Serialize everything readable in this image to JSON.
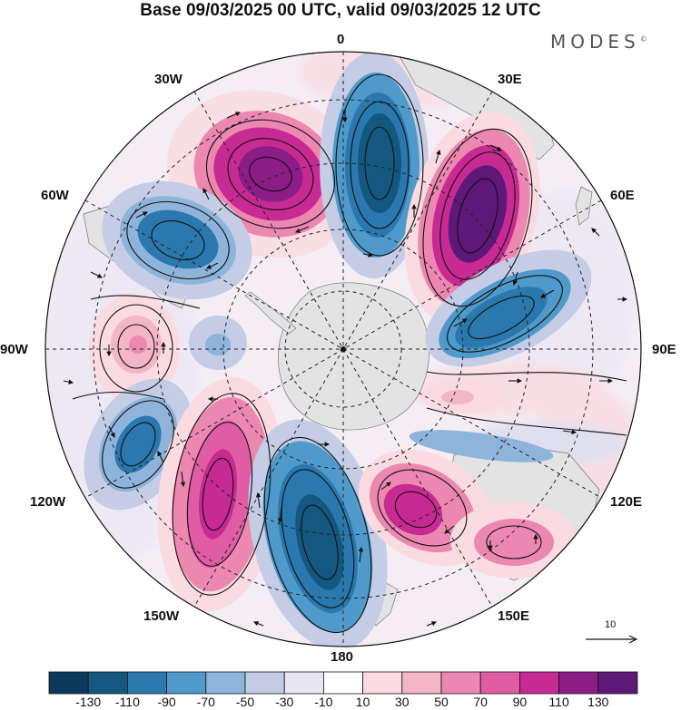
{
  "title": "Base 09/03/2025 00 UTC, valid 09/03/2025 12 UTC",
  "brand": "MODES",
  "brand_mark": "©",
  "longitudes": {
    "lon_0": "0",
    "lon_30e": "30E",
    "lon_60e": "60E",
    "lon_90e": "90E",
    "lon_120e": "120E",
    "lon_150e": "150E",
    "lon_180": "180",
    "lon_150w": "150W",
    "lon_120w": "120W",
    "lon_90w": "90W",
    "lon_60w": "60W",
    "lon_30w": "30W"
  },
  "reference_vector": {
    "label": "10"
  },
  "colorbar": {
    "colors": [
      "#0c3a5c",
      "#14587f",
      "#2a78ad",
      "#4f9acb",
      "#8fb4db",
      "#c4cce6",
      "#e8e6f3",
      "#ffffff",
      "#fadbe2",
      "#f3b5c8",
      "#ec88b0",
      "#e05da6",
      "#c82a93",
      "#8c1c86",
      "#5e1878"
    ],
    "labels": [
      "-130",
      "-110",
      "-90",
      "-70",
      "-50",
      "-30",
      "-10",
      "10",
      "30",
      "50",
      "70",
      "90",
      "110",
      "130"
    ]
  },
  "anomalies": [
    {
      "name": "positive-anomaly-30w",
      "color": "#8c1c86"
    },
    {
      "name": "negative-anomaly-0",
      "color": "#14587f"
    },
    {
      "name": "positive-anomaly-30e",
      "color": "#5e1878"
    },
    {
      "name": "negative-anomaly-60w",
      "color": "#2a78ad"
    },
    {
      "name": "negative-anomaly-80e",
      "color": "#2a78ad"
    },
    {
      "name": "positive-anomaly-90w",
      "color": "#ec88b0"
    },
    {
      "name": "negative-anomaly-100w",
      "color": "#8fb4db"
    },
    {
      "name": "negative-anomaly-110w",
      "color": "#2a78ad"
    },
    {
      "name": "positive-anomaly-150w",
      "color": "#c82a93"
    },
    {
      "name": "negative-anomaly-180",
      "color": "#14587f"
    },
    {
      "name": "positive-anomaly-135e",
      "color": "#c82a93"
    },
    {
      "name": "positive-anomaly-120e",
      "color": "#ec88b0"
    },
    {
      "name": "positive-anomaly-100e",
      "color": "#f3b5c8"
    },
    {
      "name": "negative-anomaly-110e",
      "color": "#8fb4db"
    }
  ]
}
